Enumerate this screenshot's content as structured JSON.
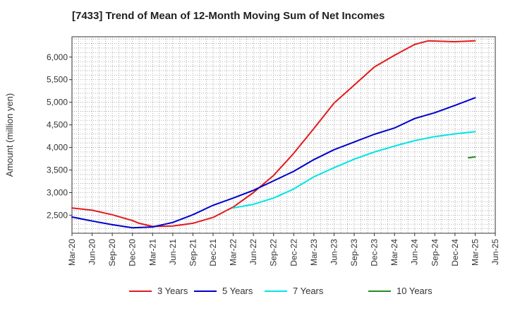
{
  "chart_data": {
    "type": "line",
    "title": "[7433]  Trend of Mean of 12-Month Moving Sum of Net Incomes",
    "ylabel": "Amount (million yen)",
    "xlabel": "",
    "ylim": [
      2100,
      6450
    ],
    "yticks": [
      2500,
      3000,
      3500,
      4000,
      4500,
      5000,
      5500,
      6000
    ],
    "ytick_labels": [
      "2,500",
      "3,000",
      "3,500",
      "4,000",
      "4,500",
      "5,000",
      "5,500",
      "6,000"
    ],
    "xlim": [
      "2020-03",
      "2025-06"
    ],
    "xtick_labels": [
      "Mar-20",
      "Jun-20",
      "Sep-20",
      "Dec-20",
      "Mar-21",
      "Jun-21",
      "Sep-21",
      "Dec-21",
      "Mar-22",
      "Jun-22",
      "Sep-22",
      "Dec-22",
      "Mar-23",
      "Jun-23",
      "Sep-23",
      "Dec-23",
      "Mar-24",
      "Jun-24",
      "Sep-24",
      "Dec-24",
      "Mar-25",
      "Jun-25"
    ],
    "grid": true,
    "legend_position": "bottom",
    "series": [
      {
        "name": "3 Years",
        "color": "#e31a1c",
        "points": [
          [
            "2020-03",
            2660
          ],
          [
            "2020-06",
            2610
          ],
          [
            "2020-09",
            2510
          ],
          [
            "2020-12",
            2380
          ],
          [
            "2021-01",
            2320
          ],
          [
            "2021-03",
            2250
          ],
          [
            "2021-06",
            2260
          ],
          [
            "2021-09",
            2320
          ],
          [
            "2021-12",
            2450
          ],
          [
            "2022-03",
            2680
          ],
          [
            "2022-06",
            3000
          ],
          [
            "2022-09",
            3380
          ],
          [
            "2022-12",
            3870
          ],
          [
            "2023-03",
            4420
          ],
          [
            "2023-06",
            4980
          ],
          [
            "2023-09",
            5380
          ],
          [
            "2023-12",
            5780
          ],
          [
            "2024-03",
            6040
          ],
          [
            "2024-06",
            6280
          ],
          [
            "2024-08",
            6360
          ],
          [
            "2024-12",
            6340
          ],
          [
            "2025-03",
            6360
          ]
        ]
      },
      {
        "name": "5 Years",
        "color": "#0000cc",
        "points": [
          [
            "2020-03",
            2460
          ],
          [
            "2020-06",
            2370
          ],
          [
            "2020-09",
            2290
          ],
          [
            "2020-12",
            2220
          ],
          [
            "2021-03",
            2240
          ],
          [
            "2021-06",
            2340
          ],
          [
            "2021-09",
            2510
          ],
          [
            "2021-12",
            2720
          ],
          [
            "2022-03",
            2880
          ],
          [
            "2022-06",
            3050
          ],
          [
            "2022-09",
            3260
          ],
          [
            "2022-12",
            3470
          ],
          [
            "2023-03",
            3730
          ],
          [
            "2023-06",
            3950
          ],
          [
            "2023-09",
            4120
          ],
          [
            "2023-12",
            4290
          ],
          [
            "2024-03",
            4430
          ],
          [
            "2024-06",
            4640
          ],
          [
            "2024-09",
            4770
          ],
          [
            "2024-12",
            4930
          ],
          [
            "2025-03",
            5100
          ]
        ]
      },
      {
        "name": "7 Years",
        "color": "#00e5e5",
        "points": [
          [
            "2022-03",
            2660
          ],
          [
            "2022-06",
            2740
          ],
          [
            "2022-09",
            2880
          ],
          [
            "2022-12",
            3080
          ],
          [
            "2023-03",
            3350
          ],
          [
            "2023-06",
            3550
          ],
          [
            "2023-09",
            3740
          ],
          [
            "2023-12",
            3900
          ],
          [
            "2024-03",
            4030
          ],
          [
            "2024-06",
            4150
          ],
          [
            "2024-09",
            4240
          ],
          [
            "2024-12",
            4300
          ],
          [
            "2025-03",
            4350
          ]
        ]
      },
      {
        "name": "10 Years",
        "color": "#228b22",
        "points": [
          [
            "2025-02",
            3770
          ],
          [
            "2025-03",
            3790
          ]
        ]
      }
    ]
  }
}
